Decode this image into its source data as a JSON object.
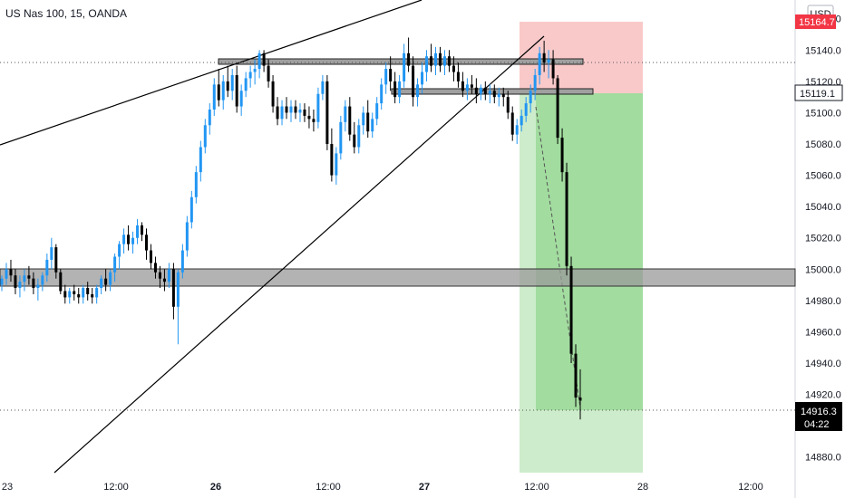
{
  "chart_data": {
    "type": "candlestick",
    "title": "US Nas 100, 15, OANDA",
    "currency": "USD",
    "ylim": [
      14870,
      15172
    ],
    "y_ticks": [
      "14880.0",
      "14900.0",
      "14920.0",
      "14940.0",
      "14960.0",
      "14980.0",
      "15000.0",
      "15020.0",
      "15040.0",
      "15060.0",
      "15080.0",
      "15100.0",
      "15120.0",
      "15140.0",
      "15160.0"
    ],
    "y_tick_values": [
      14880,
      14900,
      14920,
      14940,
      14960,
      14980,
      15000,
      15020,
      15040,
      15060,
      15080,
      15100,
      15120,
      15140,
      15160
    ],
    "x_ticks": [
      {
        "label": "23",
        "bold": false
      },
      {
        "label": "12:00",
        "bold": false
      },
      {
        "label": "26",
        "bold": true
      },
      {
        "label": "12:00",
        "bold": false
      },
      {
        "label": "27",
        "bold": true
      },
      {
        "label": "12:00",
        "bold": false
      },
      {
        "label": "28",
        "bold": false
      },
      {
        "label": "12:00",
        "bold": false
      }
    ],
    "price_labels": {
      "target": "15164.7",
      "reference": "15119.1",
      "last": "14916.3",
      "countdown": "04:22"
    },
    "zones": {
      "support_band": [
        14995,
        15006
      ],
      "resistance_box_1": [
        15136,
        15140
      ],
      "resistance_box_2": [
        15117,
        15120
      ],
      "short_position": {
        "entry": 15119.1,
        "stop": 15164.7,
        "target": 14916.3
      }
    },
    "candles": [
      [
        14990,
        14996,
        14986,
        14994
      ],
      [
        14994,
        15004,
        14990,
        15000
      ],
      [
        15000,
        15006,
        14992,
        14996
      ],
      [
        14996,
        15000,
        14984,
        14988
      ],
      [
        14988,
        14996,
        14982,
        14992
      ],
      [
        14992,
        15000,
        14986,
        14996
      ],
      [
        14996,
        15002,
        14990,
        14994
      ],
      [
        14994,
        14998,
        14984,
        14988
      ],
      [
        14988,
        14994,
        14980,
        14990
      ],
      [
        14990,
        14998,
        14986,
        14996
      ],
      [
        14996,
        15010,
        14992,
        15006
      ],
      [
        15006,
        15020,
        15000,
        15014
      ],
      [
        15014,
        15016,
        14994,
        14998
      ],
      [
        14998,
        15000,
        14984,
        14986
      ],
      [
        14986,
        14990,
        14978,
        14982
      ],
      [
        14982,
        14988,
        14978,
        14986
      ],
      [
        14986,
        14990,
        14980,
        14984
      ],
      [
        14984,
        14988,
        14978,
        14982
      ],
      [
        14982,
        14990,
        14978,
        14988
      ],
      [
        14988,
        14992,
        14980,
        14984
      ],
      [
        14984,
        14988,
        14978,
        14982
      ],
      [
        14982,
        14990,
        14978,
        14988
      ],
      [
        14988,
        14996,
        14984,
        14994
      ],
      [
        14994,
        15000,
        14986,
        14990
      ],
      [
        14990,
        15000,
        14986,
        14998
      ],
      [
        14998,
        15010,
        14992,
        15008
      ],
      [
        15008,
        15018,
        15000,
        15016
      ],
      [
        15016,
        15026,
        15010,
        15022
      ],
      [
        15022,
        15028,
        15012,
        15016
      ],
      [
        15016,
        15024,
        15010,
        15020
      ],
      [
        15020,
        15032,
        15016,
        15028
      ],
      [
        15028,
        15030,
        15018,
        15022
      ],
      [
        15022,
        15026,
        15006,
        15012
      ],
      [
        15012,
        15016,
        15000,
        15004
      ],
      [
        15004,
        15008,
        14994,
        14998
      ],
      [
        14998,
        15002,
        14988,
        14994
      ],
      [
        14994,
        15000,
        14986,
        14992
      ],
      [
        14992,
        15004,
        14988,
        15000
      ],
      [
        15000,
        15004,
        14968,
        14976
      ],
      [
        14976,
        15000,
        14952,
        14998
      ],
      [
        14998,
        15016,
        14994,
        15012
      ],
      [
        15012,
        15034,
        15008,
        15030
      ],
      [
        15030,
        15050,
        15026,
        15046
      ],
      [
        15046,
        15066,
        15042,
        15062
      ],
      [
        15062,
        15082,
        15056,
        15078
      ],
      [
        15078,
        15096,
        15074,
        15092
      ],
      [
        15092,
        15106,
        15086,
        15102
      ],
      [
        15102,
        15122,
        15098,
        15118
      ],
      [
        15118,
        15128,
        15104,
        15108
      ],
      [
        15108,
        15124,
        15102,
        15120
      ],
      [
        15120,
        15130,
        15110,
        15114
      ],
      [
        15114,
        15128,
        15108,
        15124
      ],
      [
        15124,
        15130,
        15100,
        15104
      ],
      [
        15104,
        15118,
        15098,
        15114
      ],
      [
        15114,
        15126,
        15110,
        15122
      ],
      [
        15122,
        15130,
        15116,
        15126
      ],
      [
        15126,
        15134,
        15118,
        15128
      ],
      [
        15128,
        15140,
        15122,
        15138
      ],
      [
        15138,
        15140,
        15126,
        15130
      ],
      [
        15130,
        15134,
        15116,
        15120
      ],
      [
        15120,
        15124,
        15100,
        15104
      ],
      [
        15104,
        15110,
        15092,
        15096
      ],
      [
        15096,
        15108,
        15092,
        15104
      ],
      [
        15104,
        15110,
        15096,
        15100
      ],
      [
        15100,
        15108,
        15094,
        15104
      ],
      [
        15104,
        15108,
        15096,
        15100
      ],
      [
        15100,
        15106,
        15094,
        15102
      ],
      [
        15102,
        15106,
        15094,
        15098
      ],
      [
        15098,
        15104,
        15090,
        15096
      ],
      [
        15096,
        15102,
        15088,
        15094
      ],
      [
        15094,
        15116,
        15090,
        15112
      ],
      [
        15112,
        15124,
        15108,
        15120
      ],
      [
        15120,
        15124,
        15076,
        15080
      ],
      [
        15080,
        15090,
        15056,
        15060
      ],
      [
        15060,
        15078,
        15054,
        15074
      ],
      [
        15074,
        15098,
        15070,
        15094
      ],
      [
        15094,
        15108,
        15088,
        15104
      ],
      [
        15104,
        15110,
        15082,
        15086
      ],
      [
        15086,
        15094,
        15074,
        15078
      ],
      [
        15078,
        15096,
        15074,
        15092
      ],
      [
        15092,
        15104,
        15086,
        15100
      ],
      [
        15100,
        15108,
        15084,
        15088
      ],
      [
        15088,
        15100,
        15084,
        15096
      ],
      [
        15096,
        15110,
        15092,
        15106
      ],
      [
        15106,
        15122,
        15102,
        15118
      ],
      [
        15118,
        15132,
        15112,
        15128
      ],
      [
        15128,
        15136,
        15114,
        15120
      ],
      [
        15120,
        15126,
        15106,
        15110
      ],
      [
        15110,
        15124,
        15106,
        15120
      ],
      [
        15120,
        15144,
        15116,
        15138
      ],
      [
        15138,
        15148,
        15126,
        15130
      ],
      [
        15130,
        15136,
        15104,
        15110
      ],
      [
        15110,
        15122,
        15104,
        15118
      ],
      [
        15118,
        15132,
        15112,
        15126
      ],
      [
        15126,
        15140,
        15120,
        15136
      ],
      [
        15136,
        15144,
        15126,
        15130
      ],
      [
        15130,
        15142,
        15124,
        15138
      ],
      [
        15138,
        15142,
        15126,
        15130
      ],
      [
        15130,
        15140,
        15124,
        15136
      ],
      [
        15136,
        15140,
        15126,
        15130
      ],
      [
        15130,
        15136,
        15120,
        15126
      ],
      [
        15126,
        15132,
        15116,
        15120
      ],
      [
        15120,
        15126,
        15110,
        15114
      ],
      [
        15114,
        15122,
        15108,
        15118
      ],
      [
        15118,
        15124,
        15112,
        15116
      ],
      [
        15116,
        15122,
        15106,
        15112
      ],
      [
        15112,
        15118,
        15108,
        15116
      ],
      [
        15116,
        15120,
        15108,
        15112
      ],
      [
        15112,
        15118,
        15106,
        15114
      ],
      [
        15114,
        15118,
        15106,
        15110
      ],
      [
        15110,
        15116,
        15104,
        15112
      ],
      [
        15112,
        15116,
        15104,
        15110
      ],
      [
        15110,
        15114,
        15096,
        15100
      ],
      [
        15100,
        15104,
        15082,
        15086
      ],
      [
        15086,
        15096,
        15080,
        15092
      ],
      [
        15092,
        15102,
        15088,
        15098
      ],
      [
        15098,
        15110,
        15094,
        15106
      ],
      [
        15106,
        15118,
        15100,
        15114
      ],
      [
        15114,
        15128,
        15108,
        15124
      ],
      [
        15124,
        15142,
        15118,
        15138
      ],
      [
        15138,
        15146,
        15126,
        15132
      ],
      [
        15132,
        15140,
        15122,
        15134
      ],
      [
        15134,
        15140,
        15118,
        15122
      ],
      [
        15122,
        15124,
        15080,
        15084
      ],
      [
        15084,
        15090,
        15056,
        15062
      ],
      [
        15062,
        15068,
        14996,
        15002
      ],
      [
        15002,
        15008,
        14940,
        14946
      ],
      [
        14946,
        14952,
        14912,
        14918
      ],
      [
        14918,
        14936,
        14904,
        14916
      ]
    ]
  }
}
